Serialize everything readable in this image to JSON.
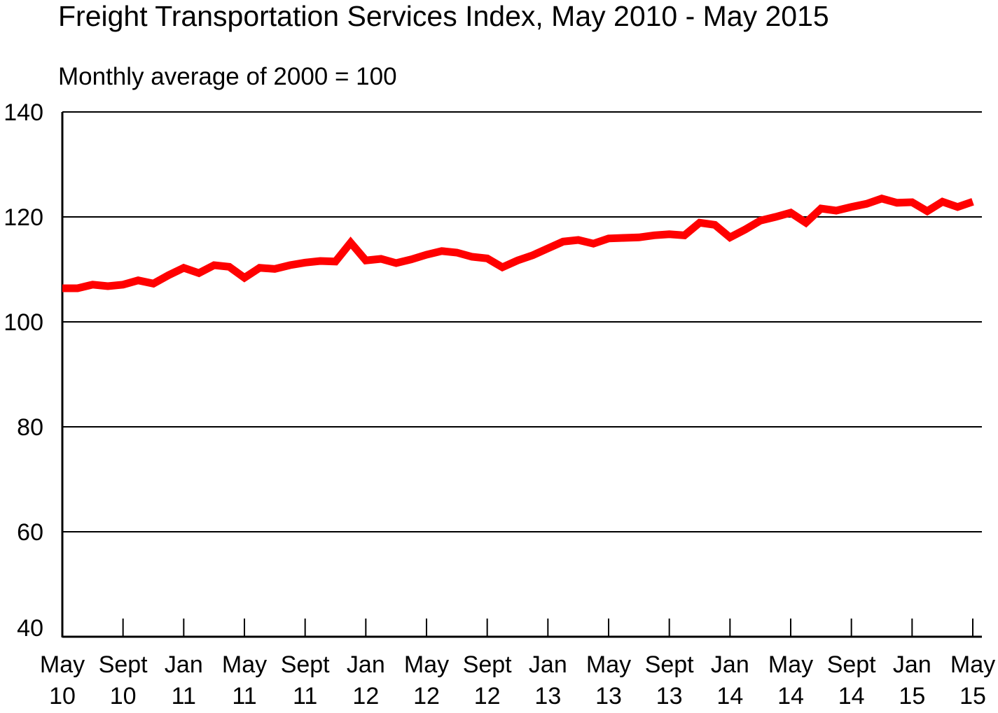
{
  "chart_data": {
    "type": "line",
    "title": "Freight Transportation Services Index, May 2010 - May 2015",
    "subtitle": "Monthly average of 2000 = 100",
    "xlabel": "",
    "ylabel": "",
    "ylim": [
      40,
      140
    ],
    "yticks": [
      "40",
      "60",
      "80",
      "100",
      "120",
      "140"
    ],
    "xticks": [
      {
        "month": "May",
        "year": "10"
      },
      {
        "month": "Sept",
        "year": "10"
      },
      {
        "month": "Jan",
        "year": "11"
      },
      {
        "month": "May",
        "year": "11"
      },
      {
        "month": "Sept",
        "year": "11"
      },
      {
        "month": "Jan",
        "year": "12"
      },
      {
        "month": "May",
        "year": "12"
      },
      {
        "month": "Sept",
        "year": "12"
      },
      {
        "month": "Jan",
        "year": "13"
      },
      {
        "month": "May",
        "year": "13"
      },
      {
        "month": "Sept",
        "year": "13"
      },
      {
        "month": "Jan",
        "year": "14"
      },
      {
        "month": "May",
        "year": "14"
      },
      {
        "month": "Sept",
        "year": "14"
      },
      {
        "month": "Jan",
        "year": "15"
      },
      {
        "month": "May",
        "year": "15"
      }
    ],
    "x_start": "May 2010",
    "x_end": "May 2015",
    "grid": "horizontal",
    "line_color": "#ff0000",
    "series": [
      {
        "values": [
          106.4,
          106.4,
          107.1,
          106.8,
          107.1,
          107.9,
          107.3,
          108.9,
          110.3,
          109.3,
          110.8,
          110.5,
          108.4,
          110.3,
          110.1,
          110.8,
          111.3,
          111.6,
          111.5,
          115.1,
          111.7,
          112.0,
          111.2,
          111.9,
          112.8,
          113.5,
          113.2,
          112.4,
          112.1,
          110.4,
          111.7,
          112.7,
          114.0,
          115.3,
          115.6,
          114.9,
          115.9,
          116.0,
          116.1,
          116.5,
          116.7,
          116.5,
          118.9,
          118.5,
          116.1,
          117.6,
          119.3,
          120.0,
          120.8,
          118.9,
          121.6,
          121.2,
          121.9,
          122.5,
          123.5,
          122.7,
          122.8,
          121.1,
          122.9,
          121.9,
          122.9
        ]
      }
    ]
  }
}
